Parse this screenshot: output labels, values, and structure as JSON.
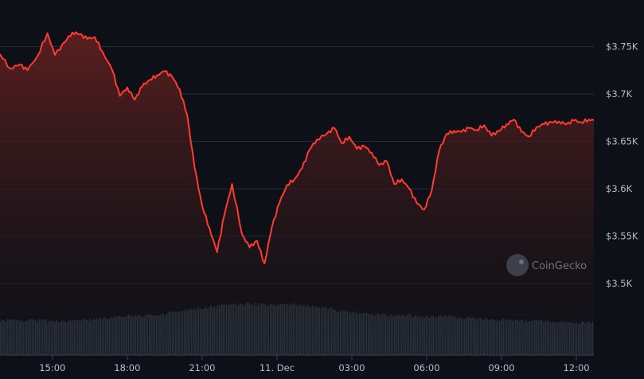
{
  "chart_data": {
    "type": "area",
    "x_ticks": [
      "15:00",
      "18:00",
      "21:00",
      "11. Dec",
      "03:00",
      "06:00",
      "09:00",
      "12:00"
    ],
    "y_ticks": [
      "$3.75K",
      "$3.7K",
      "$3.65K",
      "$3.6K",
      "$3.55K",
      "$3.5K"
    ],
    "y_tick_values": [
      3750,
      3700,
      3650,
      3600,
      3550,
      3500
    ],
    "ylim": [
      3500,
      3760
    ],
    "x_range_hours": [
      12.9,
      36.7
    ],
    "grid": true,
    "colors": {
      "line": "#ff3b30",
      "fill_top": "#5a1f1f",
      "volume": "#3a4656",
      "grid": "#262c36",
      "background": "#0d1117"
    },
    "series": [
      {
        "x": [
          12.9,
          13.3,
          13.7,
          14.0,
          14.4,
          14.8,
          15.1,
          15.5,
          15.8,
          16.1,
          16.4,
          16.7,
          17.0,
          17.4,
          17.7,
          18.0,
          18.3,
          18.6,
          18.9,
          19.2,
          19.5,
          19.8,
          20.1,
          20.4,
          20.7,
          21.0,
          21.3,
          21.6,
          21.9,
          22.2,
          22.6,
          22.9,
          23.2,
          23.5,
          23.8,
          24.1,
          24.4,
          24.7,
          25.0,
          25.3,
          25.6,
          26.0,
          26.3,
          26.6,
          26.9,
          27.2,
          27.5,
          27.8,
          28.1,
          28.4,
          28.7,
          29.0,
          29.3,
          29.6,
          29.9,
          30.2,
          30.5,
          30.8,
          31.1,
          31.4,
          31.7,
          32.0,
          32.3,
          32.6,
          32.9,
          33.2,
          33.5,
          33.8,
          34.1,
          34.4,
          34.7,
          35.0,
          35.3,
          35.6,
          35.9,
          36.2,
          36.5,
          36.7
        ],
        "y": [
          3742,
          3727,
          3731,
          3725,
          3740,
          3764,
          3741,
          3755,
          3765,
          3763,
          3758,
          3760,
          3745,
          3725,
          3698,
          3707,
          3694,
          3708,
          3715,
          3720,
          3724,
          3718,
          3705,
          3678,
          3622,
          3582,
          3558,
          3533,
          3573,
          3605,
          3552,
          3538,
          3545,
          3521,
          3560,
          3585,
          3604,
          3610,
          3621,
          3641,
          3652,
          3658,
          3664,
          3648,
          3655,
          3642,
          3645,
          3638,
          3625,
          3629,
          3605,
          3610,
          3600,
          3585,
          3578,
          3598,
          3640,
          3658,
          3661,
          3660,
          3664,
          3662,
          3667,
          3656,
          3661,
          3668,
          3673,
          3660,
          3655,
          3665,
          3668,
          3670,
          3671,
          3668,
          3672,
          3670,
          3673,
          3672
        ]
      }
    ],
    "volume": [
      0.55,
      0.54,
      0.55,
      0.53,
      0.54,
      0.56,
      0.57,
      0.6,
      0.62,
      0.63,
      0.66,
      0.7,
      0.75,
      0.78,
      0.8,
      0.8,
      0.79,
      0.8,
      0.78,
      0.74,
      0.7,
      0.66,
      0.64,
      0.62,
      0.62,
      0.6,
      0.61,
      0.59,
      0.58,
      0.56,
      0.55,
      0.54,
      0.53,
      0.52,
      0.51,
      0.52
    ]
  },
  "watermark": {
    "text": "CoinGecko",
    "icon": "gecko-logo-icon"
  }
}
